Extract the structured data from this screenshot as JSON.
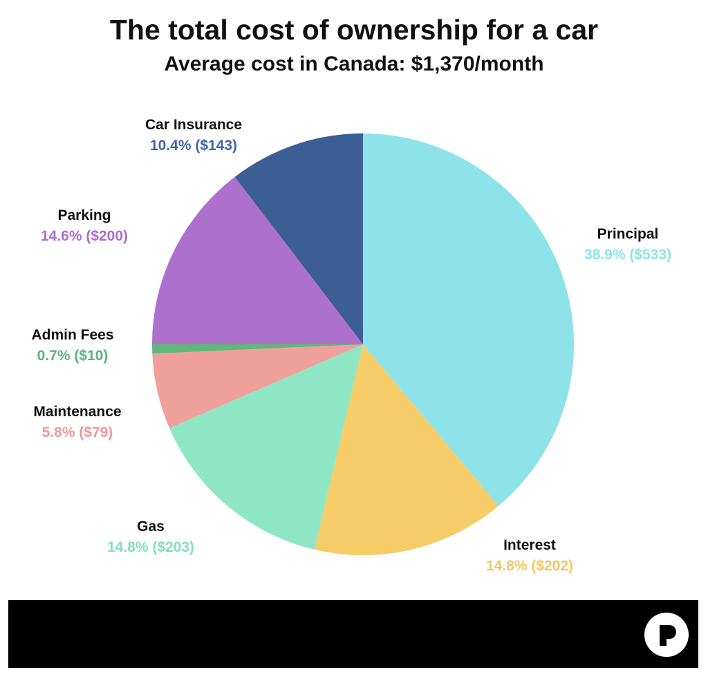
{
  "title": "The total cost of ownership for a car",
  "subtitle": "Average cost in Canada: $1,370/month",
  "chart_data": {
    "type": "pie",
    "title": "The total cost of ownership for a car",
    "subtitle": "Average cost in Canada: $1,370/month",
    "start_angle_deg": 0,
    "direction": "clockwise",
    "slices": [
      {
        "label": "Principal",
        "percent": 38.9,
        "value_text": "38.9% ($533)",
        "amount": 533,
        "color": "#8ee3e8",
        "label_color": "#8ee3e8"
      },
      {
        "label": "Interest",
        "percent": 14.8,
        "value_text": "14.8% ($202)",
        "amount": 202,
        "color": "#f5cc68",
        "label_color": "#f3c760"
      },
      {
        "label": "Gas",
        "percent": 14.8,
        "value_text": "14.8% ($203)",
        "amount": 203,
        "color": "#8ee6c4",
        "label_color": "#86dcc0"
      },
      {
        "label": "Maintenance",
        "percent": 5.8,
        "value_text": "5.8% ($79)",
        "amount": 79,
        "color": "#f0a09c",
        "label_color": "#ef9a95"
      },
      {
        "label": "Admin Fees",
        "percent": 0.7,
        "value_text": "0.7% ($10)",
        "amount": 10,
        "color": "#5fb87a",
        "label_color": "#5bb27a"
      },
      {
        "label": "Parking",
        "percent": 14.6,
        "value_text": "14.6% ($200)",
        "amount": 200,
        "color": "#ad70cd",
        "label_color": "#ad6dcc"
      },
      {
        "label": "Car Insurance",
        "percent": 10.4,
        "value_text": "10.4% ($143)",
        "amount": 143,
        "color": "#3b5e94",
        "label_color": "#3f66a6"
      }
    ]
  },
  "footer": {
    "background": "#000000",
    "logo_icon": "brand-r-logo-icon"
  }
}
